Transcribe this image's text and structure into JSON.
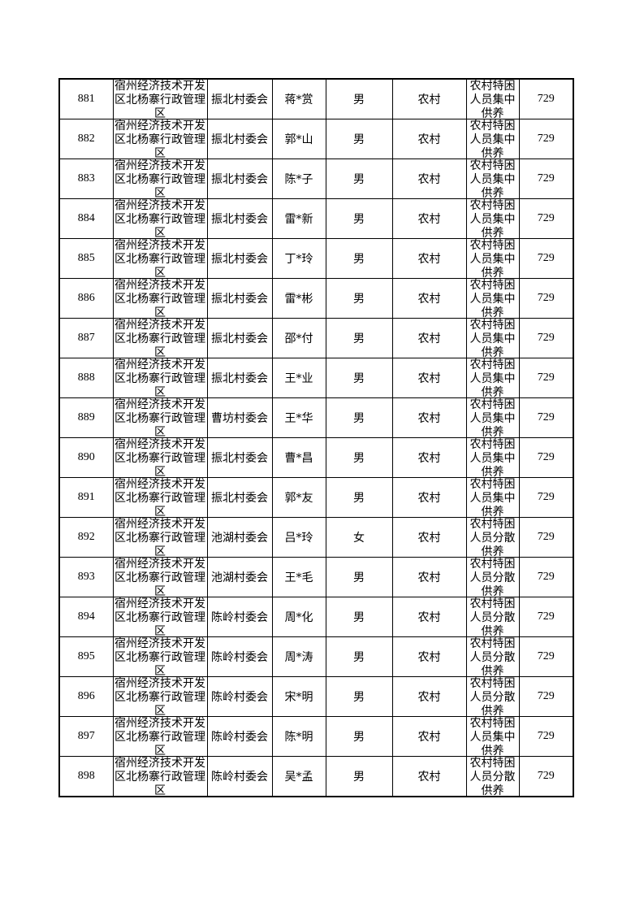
{
  "rows": [
    {
      "no": "881",
      "region": "宿州经济技术开发区北杨寨行政管理区",
      "village": "振北村委会",
      "name": "蒋*赏",
      "gender": "男",
      "area": "农村",
      "type": "农村特困人员集中供养",
      "amount": "729"
    },
    {
      "no": "882",
      "region": "宿州经济技术开发区北杨寨行政管理区",
      "village": "振北村委会",
      "name": "郭*山",
      "gender": "男",
      "area": "农村",
      "type": "农村特困人员集中供养",
      "amount": "729"
    },
    {
      "no": "883",
      "region": "宿州经济技术开发区北杨寨行政管理区",
      "village": "振北村委会",
      "name": "陈*子",
      "gender": "男",
      "area": "农村",
      "type": "农村特困人员集中供养",
      "amount": "729"
    },
    {
      "no": "884",
      "region": "宿州经济技术开发区北杨寨行政管理区",
      "village": "振北村委会",
      "name": "雷*新",
      "gender": "男",
      "area": "农村",
      "type": "农村特困人员集中供养",
      "amount": "729"
    },
    {
      "no": "885",
      "region": "宿州经济技术开发区北杨寨行政管理区",
      "village": "振北村委会",
      "name": "丁*玲",
      "gender": "男",
      "area": "农村",
      "type": "农村特困人员集中供养",
      "amount": "729"
    },
    {
      "no": "886",
      "region": "宿州经济技术开发区北杨寨行政管理区",
      "village": "振北村委会",
      "name": "雷*彬",
      "gender": "男",
      "area": "农村",
      "type": "农村特困人员集中供养",
      "amount": "729"
    },
    {
      "no": "887",
      "region": "宿州经济技术开发区北杨寨行政管理区",
      "village": "振北村委会",
      "name": "邵*付",
      "gender": "男",
      "area": "农村",
      "type": "农村特困人员集中供养",
      "amount": "729"
    },
    {
      "no": "888",
      "region": "宿州经济技术开发区北杨寨行政管理区",
      "village": "振北村委会",
      "name": "王*业",
      "gender": "男",
      "area": "农村",
      "type": "农村特困人员集中供养",
      "amount": "729"
    },
    {
      "no": "889",
      "region": "宿州经济技术开发区北杨寨行政管理区",
      "village": "曹坊村委会",
      "name": "王*华",
      "gender": "男",
      "area": "农村",
      "type": "农村特困人员集中供养",
      "amount": "729"
    },
    {
      "no": "890",
      "region": "宿州经济技术开发区北杨寨行政管理区",
      "village": "振北村委会",
      "name": "曹*昌",
      "gender": "男",
      "area": "农村",
      "type": "农村特困人员集中供养",
      "amount": "729"
    },
    {
      "no": "891",
      "region": "宿州经济技术开发区北杨寨行政管理区",
      "village": "振北村委会",
      "name": "郭*友",
      "gender": "男",
      "area": "农村",
      "type": "农村特困人员集中供养",
      "amount": "729"
    },
    {
      "no": "892",
      "region": "宿州经济技术开发区北杨寨行政管理区",
      "village": "池湖村委会",
      "name": "吕*玲",
      "gender": "女",
      "area": "农村",
      "type": "农村特困人员分散供养",
      "amount": "729"
    },
    {
      "no": "893",
      "region": "宿州经济技术开发区北杨寨行政管理区",
      "village": "池湖村委会",
      "name": "王*毛",
      "gender": "男",
      "area": "农村",
      "type": "农村特困人员分散供养",
      "amount": "729"
    },
    {
      "no": "894",
      "region": "宿州经济技术开发区北杨寨行政管理区",
      "village": "陈岭村委会",
      "name": "周*化",
      "gender": "男",
      "area": "农村",
      "type": "农村特困人员分散供养",
      "amount": "729"
    },
    {
      "no": "895",
      "region": "宿州经济技术开发区北杨寨行政管理区",
      "village": "陈岭村委会",
      "name": "周*涛",
      "gender": "男",
      "area": "农村",
      "type": "农村特困人员分散供养",
      "amount": "729"
    },
    {
      "no": "896",
      "region": "宿州经济技术开发区北杨寨行政管理区",
      "village": "陈岭村委会",
      "name": "宋*明",
      "gender": "男",
      "area": "农村",
      "type": "农村特困人员分散供养",
      "amount": "729"
    },
    {
      "no": "897",
      "region": "宿州经济技术开发区北杨寨行政管理区",
      "village": "陈岭村委会",
      "name": "陈*明",
      "gender": "男",
      "area": "农村",
      "type": "农村特困人员集中供养",
      "amount": "729"
    },
    {
      "no": "898",
      "region": "宿州经济技术开发区北杨寨行政管理区",
      "village": "陈岭村委会",
      "name": "吴*孟",
      "gender": "男",
      "area": "农村",
      "type": "农村特困人员分散供养",
      "amount": "729"
    }
  ]
}
